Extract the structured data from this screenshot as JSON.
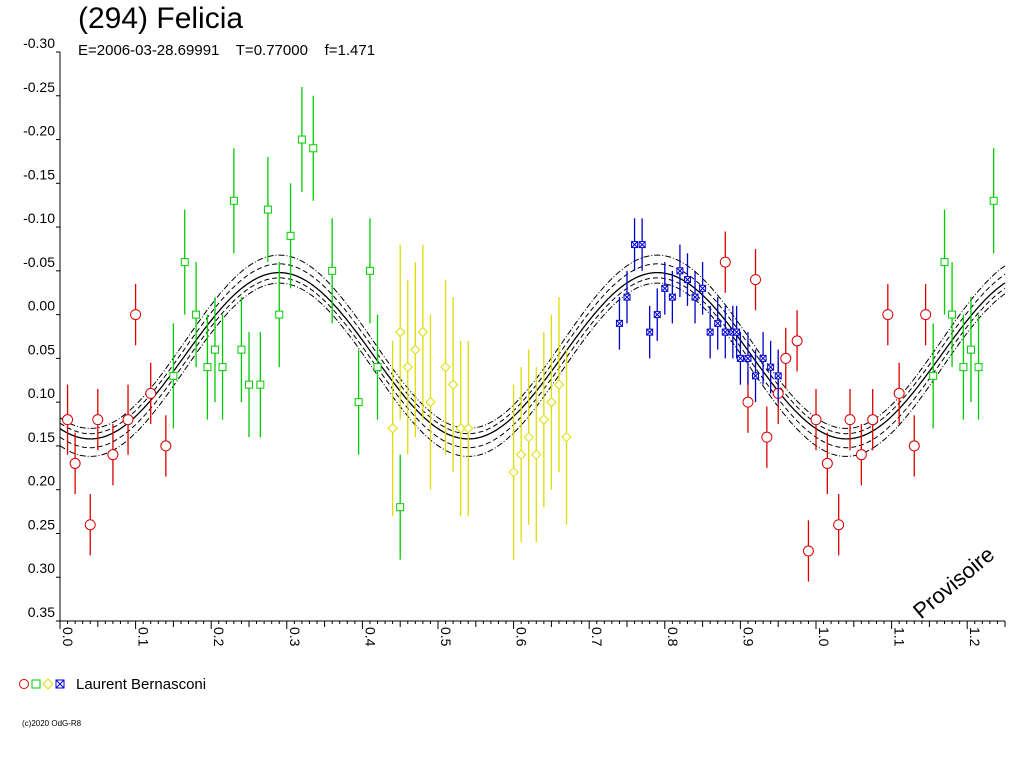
{
  "chart_data": {
    "type": "scatter",
    "title": "(294) Felicia",
    "subtitle": "E=2006-03-28.69991    T=0.77000    f=1.471",
    "xlim": [
      0,
      1.25
    ],
    "ylim": [
      -0.3,
      0.35
    ],
    "y_inverted": true,
    "x_ticks": [
      "0.0",
      "0.1",
      "0.2",
      "0.3",
      "0.4",
      "0.5",
      "0.6",
      "0.7",
      "0.8",
      "0.9",
      "1.0",
      "1.1",
      "1.2"
    ],
    "y_ticks": [
      "-0.30",
      "-0.25",
      "-0.20",
      "-0.15",
      "-0.10",
      "-0.05",
      "0.00",
      "0.05",
      "0.10",
      "0.15",
      "0.20",
      "0.25",
      "0.30",
      "0.35"
    ],
    "fit_curve": {
      "amplitude": 0.095,
      "offset": 0.047,
      "phase_of_min": 0.04
    },
    "legend": {
      "label": "Laurent Bernasconi",
      "markers": [
        "circle",
        "square",
        "diamond",
        "star"
      ]
    },
    "credit": "(c)2020 OdG-R8",
    "watermark": "Provisoire",
    "series": [
      {
        "marker": "circle",
        "color": "#dd0000",
        "x": [
          0.01,
          0.02,
          0.04,
          0.05,
          0.07,
          0.09,
          0.1,
          0.12,
          0.14,
          0.88,
          0.91,
          0.92,
          0.935,
          0.95,
          0.96,
          0.975,
          0.99,
          1.0,
          1.015,
          1.03,
          1.045,
          1.06,
          1.075,
          1.095,
          1.11,
          1.13,
          1.145
        ],
        "y": [
          0.12,
          0.17,
          0.24,
          0.12,
          0.16,
          0.12,
          0.0,
          0.09,
          0.15,
          -0.06,
          0.1,
          -0.04,
          0.14,
          0.09,
          0.05,
          0.03,
          0.27,
          0.12,
          0.17,
          0.24,
          0.12,
          0.16,
          0.12,
          0.0,
          0.09,
          0.15,
          0.0
        ],
        "err": [
          0.04,
          0.035,
          0.035,
          0.035,
          0.035,
          0.04,
          0.035,
          0.035,
          0.035,
          0.035,
          0.035,
          0.035,
          0.035,
          0.035,
          0.035,
          0.035,
          0.035,
          0.035,
          0.035,
          0.035,
          0.035,
          0.035,
          0.035,
          0.035,
          0.035,
          0.035,
          0.035
        ]
      },
      {
        "marker": "square",
        "color": "#00cc00",
        "x": [
          0.15,
          0.165,
          0.18,
          0.195,
          0.205,
          0.215,
          0.23,
          0.24,
          0.25,
          0.265,
          0.275,
          0.29,
          0.305,
          0.32,
          0.335,
          0.36,
          0.395,
          0.41,
          0.42,
          0.45,
          1.155,
          1.17,
          1.18,
          1.195,
          1.205,
          1.215,
          1.235
        ],
        "y": [
          0.07,
          -0.06,
          0.0,
          0.06,
          0.04,
          0.06,
          -0.13,
          0.04,
          0.08,
          0.08,
          -0.12,
          0.0,
          -0.09,
          -0.2,
          -0.19,
          -0.05,
          0.1,
          -0.05,
          0.06,
          0.22,
          0.07,
          -0.06,
          0.0,
          0.06,
          0.04,
          0.06,
          -0.13
        ],
        "err": [
          0.06,
          0.06,
          0.06,
          0.06,
          0.06,
          0.06,
          0.06,
          0.06,
          0.06,
          0.06,
          0.06,
          0.06,
          0.06,
          0.06,
          0.06,
          0.06,
          0.06,
          0.06,
          0.06,
          0.06,
          0.06,
          0.06,
          0.06,
          0.06,
          0.06,
          0.06,
          0.06
        ]
      },
      {
        "marker": "diamond",
        "color": "#dddd00",
        "x": [
          0.44,
          0.45,
          0.46,
          0.47,
          0.48,
          0.49,
          0.51,
          0.52,
          0.53,
          0.54,
          0.6,
          0.61,
          0.62,
          0.63,
          0.64,
          0.65,
          0.66,
          0.67
        ],
        "y": [
          0.13,
          0.02,
          0.06,
          0.04,
          0.02,
          0.1,
          0.06,
          0.08,
          0.13,
          0.13,
          0.18,
          0.16,
          0.14,
          0.16,
          0.12,
          0.1,
          0.08,
          0.14
        ],
        "err": [
          0.1,
          0.1,
          0.1,
          0.1,
          0.1,
          0.1,
          0.1,
          0.1,
          0.1,
          0.1,
          0.1,
          0.1,
          0.1,
          0.1,
          0.1,
          0.1,
          0.1,
          0.1
        ]
      },
      {
        "marker": "star",
        "color": "#0000cc",
        "x": [
          0.74,
          0.75,
          0.76,
          0.77,
          0.78,
          0.79,
          0.8,
          0.81,
          0.82,
          0.83,
          0.84,
          0.85,
          0.86,
          0.87,
          0.88,
          0.89,
          0.895,
          0.9,
          0.91,
          0.92,
          0.93,
          0.94,
          0.95
        ],
        "y": [
          0.01,
          -0.02,
          -0.08,
          -0.08,
          0.02,
          0.0,
          -0.03,
          -0.02,
          -0.05,
          -0.04,
          -0.02,
          -0.03,
          0.02,
          0.01,
          0.02,
          0.02,
          0.02,
          0.05,
          0.05,
          0.07,
          0.05,
          0.06,
          0.07
        ],
        "err": [
          0.03,
          0.03,
          0.03,
          0.03,
          0.03,
          0.03,
          0.03,
          0.03,
          0.03,
          0.03,
          0.03,
          0.03,
          0.03,
          0.03,
          0.03,
          0.03,
          0.03,
          0.03,
          0.03,
          0.03,
          0.03,
          0.03,
          0.03
        ]
      }
    ]
  }
}
